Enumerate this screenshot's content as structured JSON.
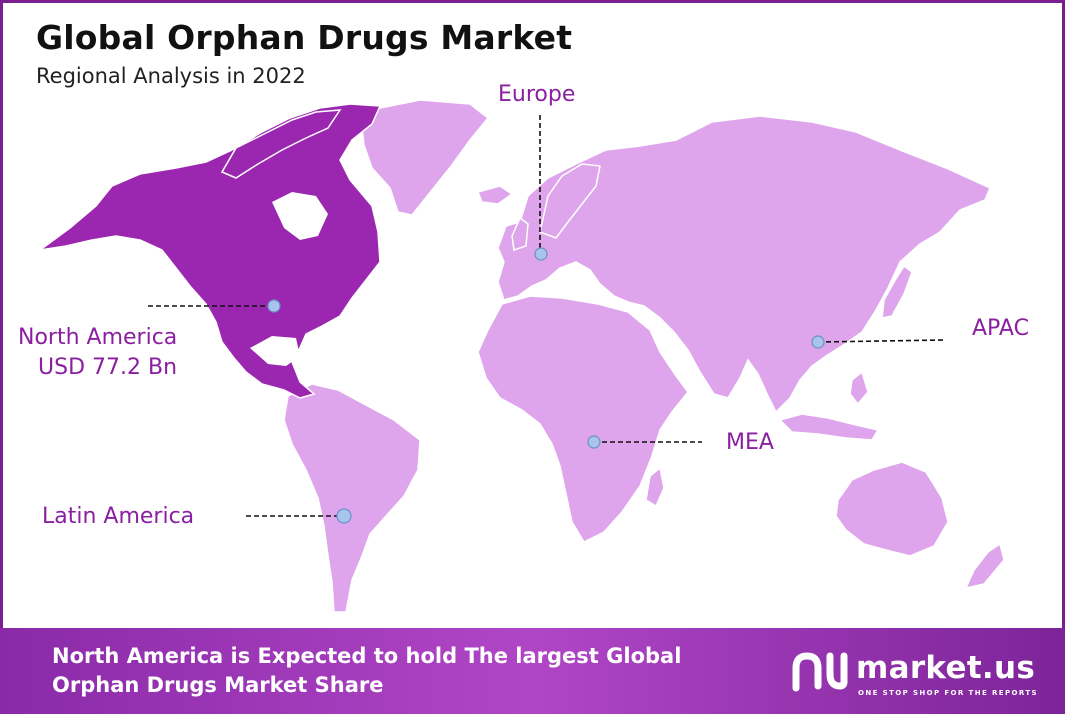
{
  "header": {
    "title": "Global Orphan Drugs Market",
    "subtitle": "Regional Analysis in 2022"
  },
  "regions": {
    "north_america": {
      "name": "North America",
      "value": "USD 77.2 Bn"
    },
    "europe": {
      "name": "Europe"
    },
    "apac": {
      "name": "APAC"
    },
    "mea": {
      "name": "MEA"
    },
    "latin_america": {
      "name": "Latin America"
    }
  },
  "colors": {
    "highlight_region": "#9b27b0",
    "other_regions": "#dfa5ec",
    "label_text": "#8a1fa0",
    "marker": "#a9c4ec",
    "footer_bg": "#a23bbd"
  },
  "footer": {
    "message": "North America is Expected to hold The largest Global Orphan Drugs Market Share",
    "brand_name": "market.us",
    "brand_tagline": "ONE STOP SHOP FOR THE REPORTS",
    "brand_icon": "market-us-logo-icon"
  }
}
